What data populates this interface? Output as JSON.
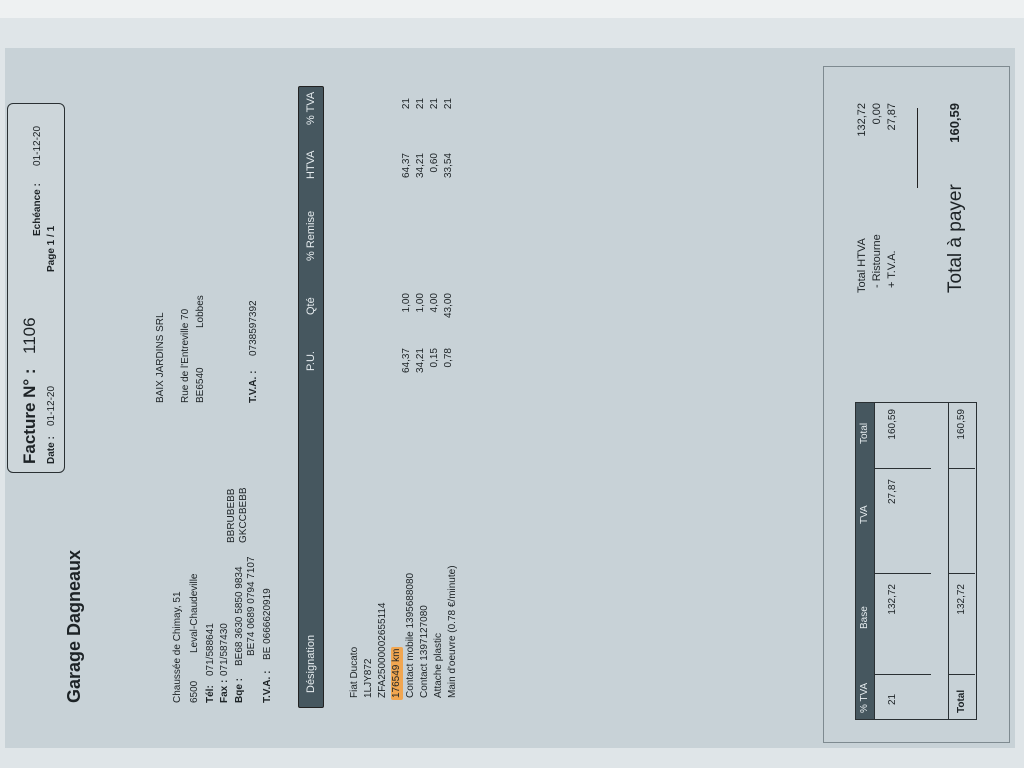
{
  "company": {
    "name": "Garage Dagneaux",
    "address_line": "Chaussée de Chimay, 51",
    "postcode": "6500",
    "city": "Leval-Chaudeville",
    "tel_label": "Tél:",
    "tel": "071/588641",
    "fax_label": "Fax :",
    "fax": "071/587430",
    "bank_label": "Bqe :",
    "bank_1": "BE68 3630 5850 9834",
    "bank_2": "BE74 0689 0794 7107",
    "bic_1": "BBRUBEBB",
    "bic_2": "GKCCBEBB",
    "vat_label": "T.V.A. :",
    "vat": "BE  0666620919"
  },
  "invoice": {
    "title": "Facture N° :",
    "number": "1106",
    "date_label": "Date :",
    "date": "01-12-20",
    "page": "Page  1 / 1",
    "due_label": "Echéance :",
    "due": "01-12-20"
  },
  "client": {
    "name": "BAIX JARDINS SRL",
    "street": "Rue de l'Entreville 70",
    "postcode": "BE6540",
    "city": "Lobbes",
    "vat_label": "T.V.A. :",
    "vat": "0738597392"
  },
  "table": {
    "headers": [
      "Désignation",
      "P.U.",
      "Qté",
      "% Remise",
      "HTVA",
      "% TVA"
    ],
    "info_lines": [
      "Fiat Ducato",
      "1LJY872",
      "ZFA25000002655114",
      "176549 km"
    ],
    "highlight_color": "#f1a650",
    "rows": [
      {
        "designation": "Contact mobile 1395688080",
        "pu": "64,37",
        "qte": "1,00",
        "remise": "",
        "htva": "64,37",
        "tva": "21"
      },
      {
        "designation": "Contact 1397127080",
        "pu": "34,21",
        "qte": "1,00",
        "remise": "",
        "htva": "34,21",
        "tva": "21"
      },
      {
        "designation": "Attache plastic",
        "pu": "0,15",
        "qte": "4,00",
        "remise": "",
        "htva": "0,60",
        "tva": "21"
      },
      {
        "designation": "Main d'oeuvre (0.78 €/minute)",
        "pu": "0,78",
        "qte": "43,00",
        "remise": "",
        "htva": "33,54",
        "tva": "21"
      }
    ]
  },
  "vat_summary": {
    "headers": [
      "% TVA",
      "Base",
      "TVA",
      "Total"
    ],
    "row": [
      "21",
      "132,72",
      "27,87",
      "160,59"
    ],
    "total_row": [
      "Total",
      "132,72",
      "",
      "160,59"
    ]
  },
  "totals": {
    "htva_label": "Total HTVA",
    "htva": "132,72",
    "ristourne_label": "- Ristourne",
    "ristourne": "0,00",
    "tva_label": "+ T.V.A.",
    "tva": "27,87",
    "pay_label": "Total à payer",
    "pay": "160,59"
  },
  "colors": {
    "header_bar": "#46575f",
    "paper": "#c8d2d7"
  }
}
